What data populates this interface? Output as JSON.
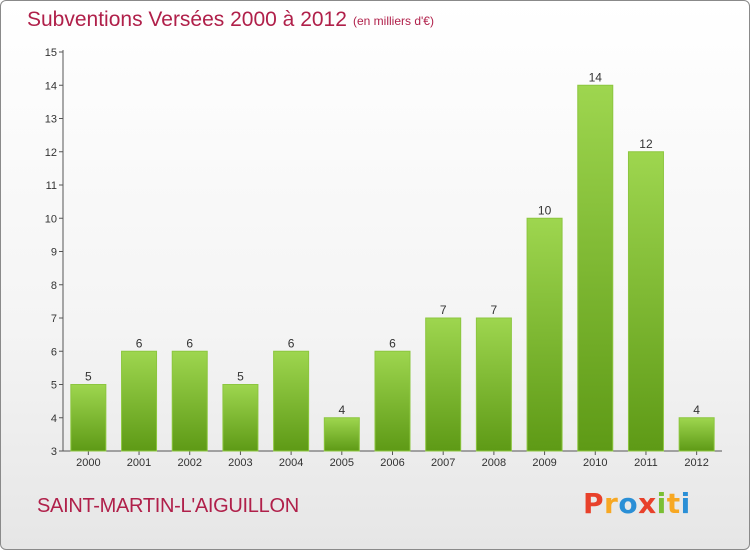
{
  "header": {
    "title": "Subventions Versées 2000 à 2012",
    "subtitle": "(en milliers d'€)"
  },
  "footer": {
    "commune": "SAINT-MARTIN-L'AIGUILLON",
    "brand_letters": [
      "P",
      "r",
      "o",
      "x",
      "i",
      "t",
      "i"
    ]
  },
  "colors": {
    "title": "#b0204a",
    "bar_top": "#9ed64f",
    "bar_bottom": "#5e9a16",
    "brand": [
      "#e8412b",
      "#f7a823",
      "#2a8fd6",
      "#e8412b",
      "#7abf34",
      "#f7a823",
      "#2a8fd6"
    ]
  },
  "chart_data": {
    "type": "bar",
    "categories": [
      "2000",
      "2001",
      "2002",
      "2003",
      "2004",
      "2005",
      "2006",
      "2007",
      "2008",
      "2009",
      "2010",
      "2011",
      "2012"
    ],
    "values": [
      5,
      6,
      6,
      5,
      6,
      4,
      6,
      7,
      7,
      10,
      14,
      12,
      4
    ],
    "title": "Subventions Versées 2000 à 2012",
    "subtitle": "(en milliers d'€)",
    "xlabel": "",
    "ylabel": "",
    "ylim": [
      3,
      15
    ],
    "yticks": [
      3,
      4,
      5,
      6,
      7,
      8,
      9,
      10,
      11,
      12,
      13,
      14,
      15
    ],
    "grid": false,
    "legend": "none"
  }
}
